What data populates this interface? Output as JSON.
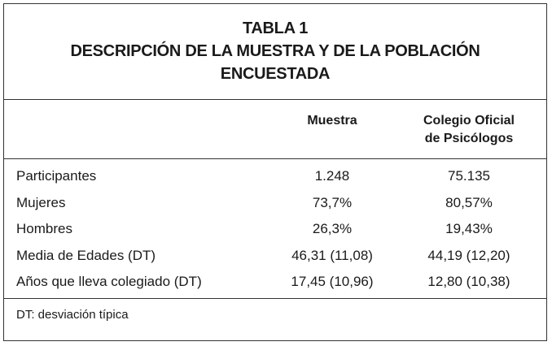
{
  "header": {
    "title": "TABLA 1",
    "subtitle_lines": [
      "DESCRIPCIÓN DE LA MUESTRA Y DE LA POBLACIÓN",
      "ENCUESTADA"
    ]
  },
  "table": {
    "columns": [
      [
        "Muestra"
      ],
      [
        "Colegio Oficial",
        "de Psicólogos"
      ]
    ],
    "rows": [
      [
        "Participantes",
        "1.248",
        "75.135"
      ],
      [
        "Mujeres",
        "73,7%",
        "80,57%"
      ],
      [
        "Hombres",
        "26,3%",
        "19,43%"
      ],
      [
        "Media de Edades (DT)",
        "46,31 (11,08)",
        "44,19 (12,20)"
      ],
      [
        "Años que lleva colegiado (DT)",
        "17,45 (10,96)",
        "12,80 (10,38)"
      ]
    ]
  },
  "footnote": "DT: desviación típica"
}
